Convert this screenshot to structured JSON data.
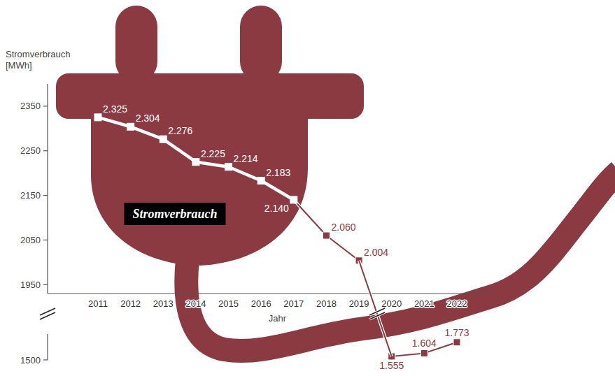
{
  "chart_data": [
    {
      "type": "line",
      "title": "Stromverbrauch",
      "y_label": "Stromverbrauch [MWh]",
      "x_label": "Jahr",
      "categories": [
        "2011",
        "2012",
        "2013",
        "2014",
        "2015",
        "2016",
        "2017",
        "2018",
        "2019",
        "2020",
        "2021",
        "2022"
      ],
      "values": [
        2325,
        2304,
        2276,
        2225,
        2214,
        2183,
        2140,
        2060,
        2004,
        null,
        null,
        null
      ],
      "value_labels": [
        "2.325",
        "2.304",
        "2.276",
        "2.225",
        "2.214",
        "2.183",
        "2.140",
        "2.060",
        "2.004",
        null,
        null,
        null
      ],
      "colors": [
        "#ffffff",
        "#ffffff",
        "#ffffff",
        "#ffffff",
        "#ffffff",
        "#ffffff",
        "#ffffff",
        "#8b3a42",
        "#8b3a42",
        null,
        null,
        null
      ],
      "marker": "square",
      "line_style": "solid",
      "data_labels": true,
      "grid": false,
      "ylim": [
        1930,
        2400
      ],
      "yticks": [
        1950,
        2050,
        2150,
        2250,
        2350
      ]
    },
    {
      "type": "line",
      "categories": [
        "2011",
        "2012",
        "2013",
        "2014",
        "2015",
        "2016",
        "2017",
        "2018",
        "2019",
        "2020",
        "2021",
        "2022"
      ],
      "values": [
        null,
        null,
        null,
        null,
        null,
        null,
        null,
        null,
        null,
        1555,
        1604,
        1773
      ],
      "value_labels": [
        null,
        null,
        null,
        null,
        null,
        null,
        null,
        null,
        null,
        "1.555",
        "1.604",
        "1.773"
      ],
      "colors": [
        null,
        null,
        null,
        null,
        null,
        null,
        null,
        null,
        null,
        "#8b3a42",
        "#8b3a42",
        "#8b3a42"
      ],
      "marker": "square",
      "line_style": "solid",
      "data_labels": true,
      "grid": false,
      "tick_labels": "y",
      "ylim": [
        1500,
        1900
      ],
      "yticks": [
        1500
      ]
    }
  ]
}
